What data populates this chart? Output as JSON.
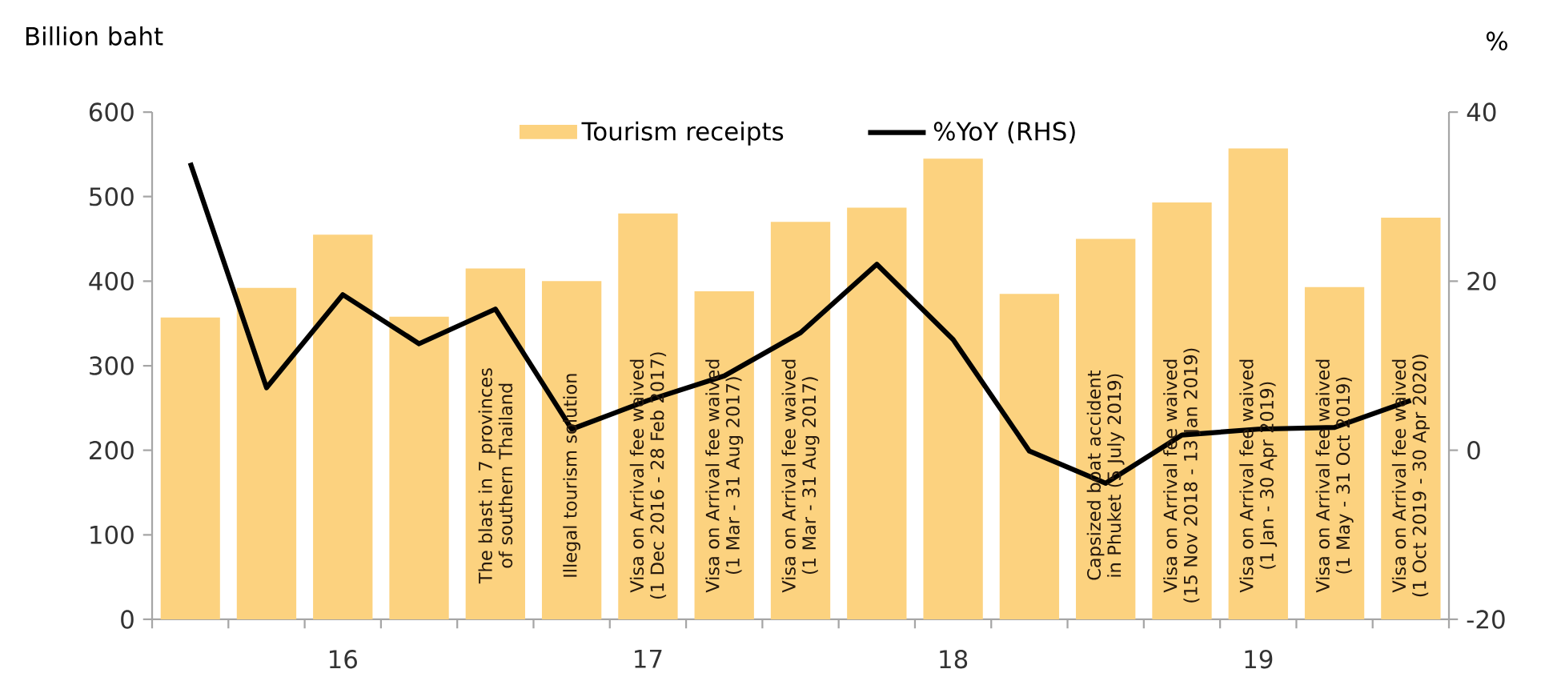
{
  "chart_data": {
    "type": "bar",
    "ylabel": "Billion baht",
    "y2label": "%",
    "categories": [
      null,
      null,
      "16",
      null,
      null,
      null,
      "17",
      null,
      null,
      null,
      "18",
      null,
      null,
      null,
      "19",
      null,
      null
    ],
    "series": [
      {
        "name": "Tourism receipts",
        "color": "#fcd27f",
        "values": [
          357,
          392,
          455,
          358,
          415,
          400,
          480,
          388,
          470,
          487,
          545,
          385,
          450,
          493,
          557,
          393,
          475
        ]
      },
      {
        "name": "%YoY (RHS)",
        "type": "line",
        "axis": "y2",
        "color": "#000000",
        "values": [
          34,
          7.4,
          18.4,
          12.6,
          16.7,
          2.5,
          5.9,
          8.8,
          13.9,
          22,
          13.1,
          -0.1,
          -3.9,
          1.8,
          2.5,
          2.7,
          5.9
        ]
      }
    ],
    "ylim": [
      0,
      600
    ],
    "yticks": [
      0,
      100,
      200,
      300,
      400,
      500,
      600
    ],
    "y2lim": [
      -20,
      40
    ],
    "y2ticks": [
      -20,
      0,
      20,
      40
    ],
    "legend": "top",
    "grid": false,
    "marker": "none",
    "line_style": "solid",
    "annotations": [
      "The blast in 7 provinces of southern Thailand",
      "Illegal tourism solution",
      "Visa on Arrival fee waived (1 Dec 2016 - 28 Feb 2017)",
      "Visa on Arrival fee waived (1 Mar - 31 Aug 2017)",
      "Visa on Arrival fee waived (1 Mar - 31 Aug 2017)",
      "Capsized boat accident in Phuket (5 July 2019)",
      "Visa on Arrival fee waived (15 Nov 2018 - 13 Jan 2019)",
      "Visa on Arrival fee waived (1 Jan - 30 Apr 2019)",
      "Visa on Arrival fee waived (1 May - 31 Oct 2019)",
      "Visa on Arrival fee waived (1 Oct 2019 - 30 Apr 2020)"
    ]
  }
}
